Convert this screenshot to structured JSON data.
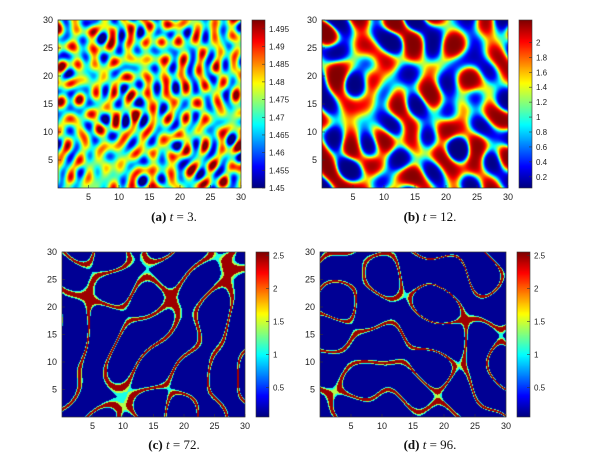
{
  "chart_data": [
    {
      "type": "heatmap",
      "panel": "a",
      "caption": {
        "label": "(a)",
        "var": "t",
        "eq": " = ",
        "value": "3."
      },
      "xlim": [
        0,
        30
      ],
      "ylim": [
        0,
        30
      ],
      "xticks": [
        "5",
        "10",
        "15",
        "20",
        "25",
        "30"
      ],
      "yticks": [
        "5",
        "10",
        "15",
        "20",
        "25",
        "30"
      ],
      "colorbar": {
        "range": [
          1.45,
          1.4975
        ],
        "ticks": [
          "1.45",
          "1.455",
          "1.46",
          "1.465",
          "1.47",
          "1.475",
          "1.48",
          "1.485",
          "1.49",
          "1.495"
        ]
      },
      "pattern": "fine-noise",
      "colormap": "jet"
    },
    {
      "type": "heatmap",
      "panel": "b",
      "caption": {
        "label": "(b)",
        "var": "t",
        "eq": " = ",
        "value": "12."
      },
      "xlim": [
        0,
        30
      ],
      "ylim": [
        0,
        30
      ],
      "xticks": [
        "5",
        "10",
        "15",
        "20",
        "25",
        "30"
      ],
      "yticks": [
        "5",
        "10",
        "15",
        "20",
        "25",
        "30"
      ],
      "colorbar": {
        "range": [
          0.05,
          2.3
        ],
        "ticks": [
          "0.2",
          "0.4",
          "0.6",
          "0.8",
          "1",
          "1.2",
          "1.4",
          "1.6",
          "1.8",
          "2"
        ]
      },
      "pattern": "spots",
      "colormap": "jet"
    },
    {
      "type": "heatmap",
      "panel": "c",
      "caption": {
        "label": "(c)",
        "var": "t",
        "eq": " = ",
        "value": "72."
      },
      "xlim": [
        0,
        30
      ],
      "ylim": [
        0,
        30
      ],
      "xticks": [
        "5",
        "10",
        "15",
        "20",
        "25",
        "30"
      ],
      "yticks": [
        "5",
        "10",
        "15",
        "20",
        "25",
        "30"
      ],
      "colorbar": {
        "range": [
          0.05,
          2.55
        ],
        "ticks": [
          "0.5",
          "1",
          "1.5",
          "2",
          "2.5"
        ]
      },
      "pattern": "labyrinth",
      "colormap": "jet"
    },
    {
      "type": "heatmap",
      "panel": "d",
      "caption": {
        "label": "(d)",
        "var": "t",
        "eq": " = ",
        "value": "96."
      },
      "xlim": [
        0,
        30
      ],
      "ylim": [
        0,
        30
      ],
      "xticks": [
        "5",
        "10",
        "15",
        "20",
        "25",
        "30"
      ],
      "yticks": [
        "5",
        "10",
        "15",
        "20",
        "25",
        "30"
      ],
      "colorbar": {
        "range": [
          0.05,
          2.55
        ],
        "ticks": [
          "0.5",
          "1",
          "1.5",
          "2",
          "2.5"
        ]
      },
      "pattern": "labyrinth",
      "colormap": "jet"
    }
  ]
}
